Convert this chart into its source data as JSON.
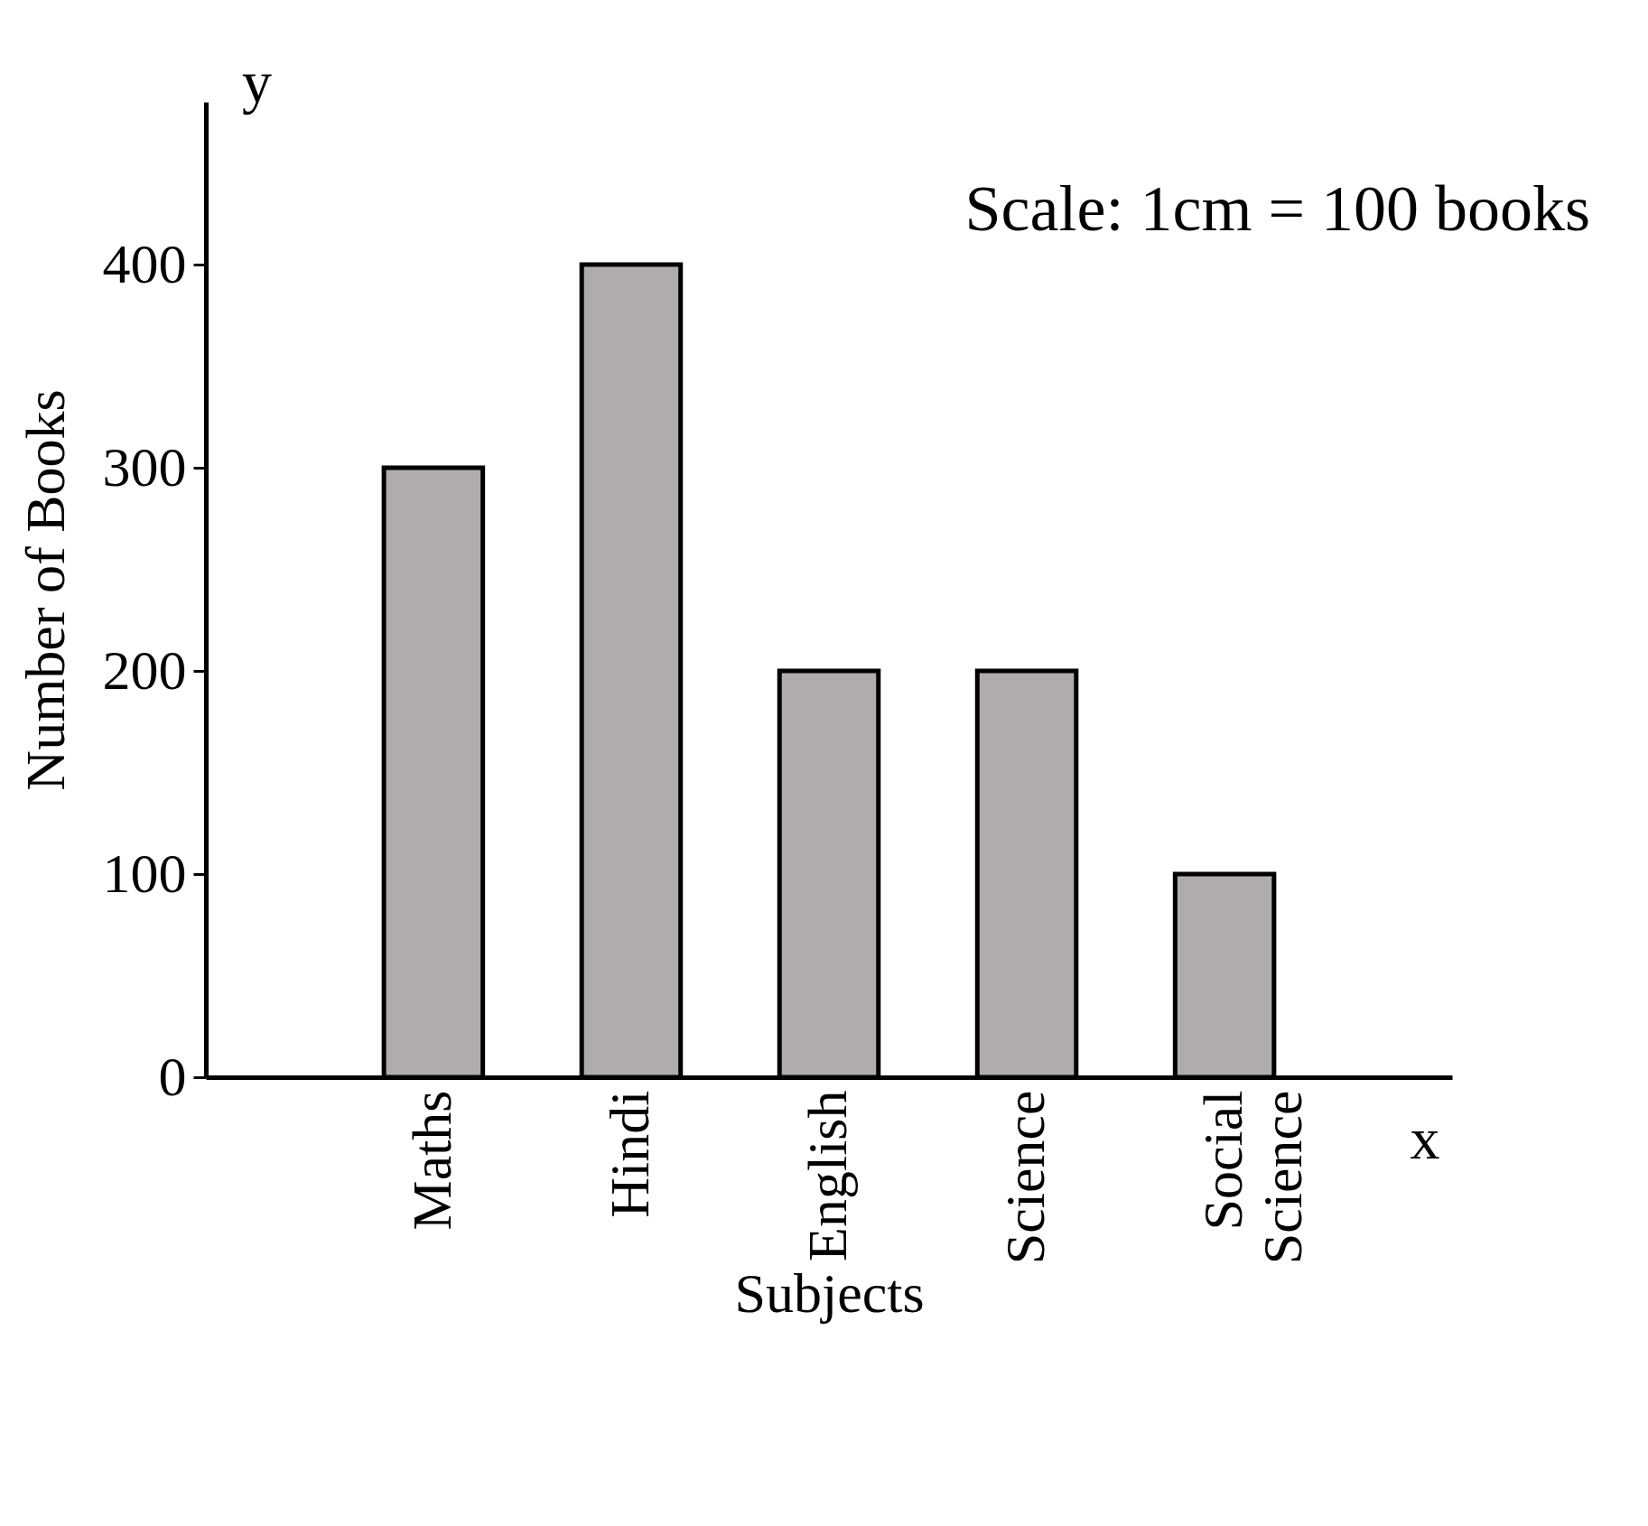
{
  "chart_data": {
    "type": "bar",
    "categories": [
      "Maths",
      "Hindi",
      "English",
      "Science",
      "Social Science"
    ],
    "values": [
      300,
      400,
      200,
      200,
      100
    ],
    "color": "#b0acab",
    "xlabel": "Subjects",
    "ylabel": "Number of Books",
    "ylim": [
      0,
      480
    ],
    "yticks": [
      0,
      100,
      200,
      300,
      400
    ],
    "grid": false,
    "annotations": [
      "Scale: 1cm = 100 books",
      "y",
      "x"
    ]
  }
}
